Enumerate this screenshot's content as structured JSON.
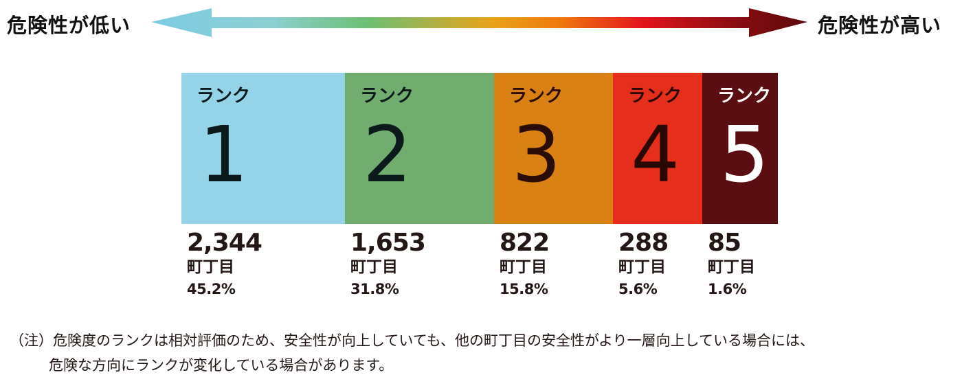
{
  "scale": {
    "low_label": "危険性が低い",
    "high_label": "危険性が高い"
  },
  "chart_data": {
    "type": "bar",
    "categories": [
      "1",
      "2",
      "3",
      "4",
      "5"
    ],
    "rank_prefix": "ランク",
    "unit": "町丁目",
    "values": [
      2344,
      1653,
      822,
      288,
      85
    ],
    "value_labels": [
      "2,344",
      "1,653",
      "822",
      "288",
      "85"
    ],
    "percent_labels": [
      "45.2%",
      "31.8%",
      "15.8%",
      "5.6%",
      "1.6%"
    ],
    "colors": [
      "#95d3e8",
      "#70ad6e",
      "#d98213",
      "#e62e1c",
      "#5a0e12"
    ],
    "text_colors": [
      "#0d1a1c",
      "#0d1a1c",
      "#2a0d06",
      "#2a0806",
      "#ffffff"
    ],
    "layout": "stacked-horizontal-proportional-strips"
  },
  "note": {
    "line1": "（注）危険度のランクは相対評価のため、安全性が向上していても、他の町丁目の安全性がより一層向上している場合には、",
    "line2": "危険な方向にランクが変化している場合があります。"
  }
}
